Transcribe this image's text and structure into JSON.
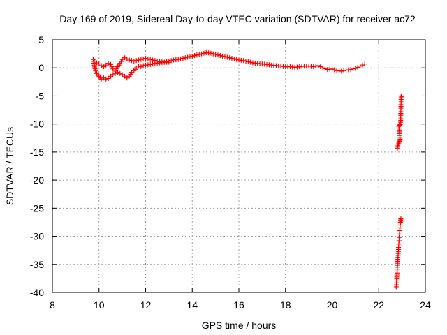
{
  "chart_data": {
    "type": "scatter",
    "title": "Day 169 of 2019, Sidereal Day-to-day VTEC variation (SDTVAR) for receiver ac72",
    "xlabel": "GPS time / hours",
    "ylabel": "SDTVAR / TECUs",
    "xlim": [
      8,
      24
    ],
    "ylim": [
      -40,
      5
    ],
    "xticks": [
      8,
      10,
      12,
      14,
      16,
      18,
      20,
      22,
      24
    ],
    "yticks": [
      5,
      0,
      -5,
      -10,
      -15,
      -20,
      -25,
      -30,
      -35,
      -40
    ],
    "grid": true,
    "marker": "+",
    "color": "#ff0000",
    "series": [
      {
        "name": "main-trace",
        "x": [
          9.75,
          9.8,
          9.85,
          9.9,
          10.0,
          10.1,
          10.2,
          10.3,
          10.4,
          10.5,
          10.6,
          10.7,
          10.8,
          10.9,
          11.0,
          11.1,
          11.2,
          11.3,
          11.4,
          11.5,
          11.6,
          11.7,
          11.8,
          11.9,
          12.0,
          12.2,
          12.4,
          12.6,
          12.8,
          13.0,
          13.2,
          13.4,
          13.6,
          13.8,
          14.0,
          14.2,
          14.4,
          14.6,
          14.8,
          15.0,
          15.2,
          15.4,
          15.6,
          15.8,
          16.0,
          16.2,
          16.4,
          16.6,
          16.8,
          17.0,
          17.2,
          17.4,
          17.6,
          17.8,
          18.0,
          18.2,
          18.4,
          18.6,
          18.8,
          19.0,
          19.2,
          19.4,
          19.6,
          19.8,
          20.0,
          20.2,
          20.4,
          20.6,
          20.8,
          21.0,
          21.2,
          21.3,
          21.4
        ],
        "y": [
          1.5,
          0.5,
          -0.5,
          -1.0,
          -1.5,
          -2.0,
          -1.8,
          -2.0,
          -1.9,
          -1.5,
          -1.2,
          -1.0,
          -0.8,
          -1.0,
          -1.2,
          -1.5,
          -1.8,
          -1.5,
          -0.8,
          -0.5,
          0.0,
          0.3,
          0.2,
          0.4,
          0.5,
          0.6,
          0.8,
          0.9,
          1.0,
          1.2,
          1.4,
          1.5,
          1.7,
          1.9,
          2.1,
          2.3,
          2.5,
          2.7,
          2.6,
          2.4,
          2.2,
          2.0,
          1.8,
          1.6,
          1.4,
          1.3,
          1.1,
          0.9,
          0.8,
          0.7,
          0.6,
          0.5,
          0.4,
          0.3,
          0.2,
          0.2,
          0.1,
          0.2,
          0.3,
          0.3,
          0.2,
          0.4,
          0.0,
          -0.3,
          -0.2,
          -0.5,
          -0.6,
          -0.4,
          -0.3,
          -0.1,
          0.3,
          0.5,
          0.7
        ]
      },
      {
        "name": "upper-branch",
        "x": [
          9.8,
          9.9,
          10.0,
          10.1,
          10.2,
          10.3,
          10.4,
          10.5,
          10.6,
          10.7,
          10.8,
          10.9,
          11.0,
          11.1,
          11.2,
          11.3,
          11.4,
          11.5,
          11.6,
          11.8,
          12.0,
          12.2,
          12.4,
          12.6,
          12.8,
          13.0
        ],
        "y": [
          1.2,
          0.9,
          0.7,
          0.4,
          0.2,
          0.5,
          0.8,
          0.6,
          -0.2,
          -0.6,
          0.2,
          0.8,
          1.5,
          1.8,
          1.6,
          1.4,
          1.3,
          1.2,
          1.3,
          1.5,
          1.7,
          1.5,
          1.3,
          1.1,
          1.0,
          1.0
        ]
      },
      {
        "name": "late-drop",
        "x": [
          22.75,
          22.76,
          22.77,
          22.78,
          22.79,
          22.8,
          22.81,
          22.82,
          22.83,
          22.84,
          22.85,
          22.86,
          22.87,
          22.88,
          22.89,
          22.9,
          22.91,
          22.92,
          22.93,
          22.94,
          22.95,
          22.96
        ],
        "y": [
          -39.0,
          -38.3,
          -37.6,
          -36.9,
          -36.2,
          -35.5,
          -34.8,
          -34.1,
          -33.4,
          -32.7,
          -32.0,
          -31.4,
          -30.8,
          -30.2,
          -29.6,
          -29.0,
          -28.5,
          -28.0,
          -27.5,
          -27.1,
          -26.9,
          -27.3
        ]
      },
      {
        "name": "late-cluster",
        "x": [
          22.8,
          22.82,
          22.84,
          22.86,
          22.88,
          22.9,
          22.92,
          22.86,
          22.88,
          22.9,
          22.92,
          22.94,
          22.96,
          22.98
        ],
        "y": [
          -14.3,
          -13.9,
          -13.6,
          -13.4,
          -13.1,
          -12.9,
          -12.7,
          -10.4,
          -10.2,
          -10.2,
          -10.1,
          -10.0,
          -5.0,
          -5.1
        ]
      }
    ]
  }
}
